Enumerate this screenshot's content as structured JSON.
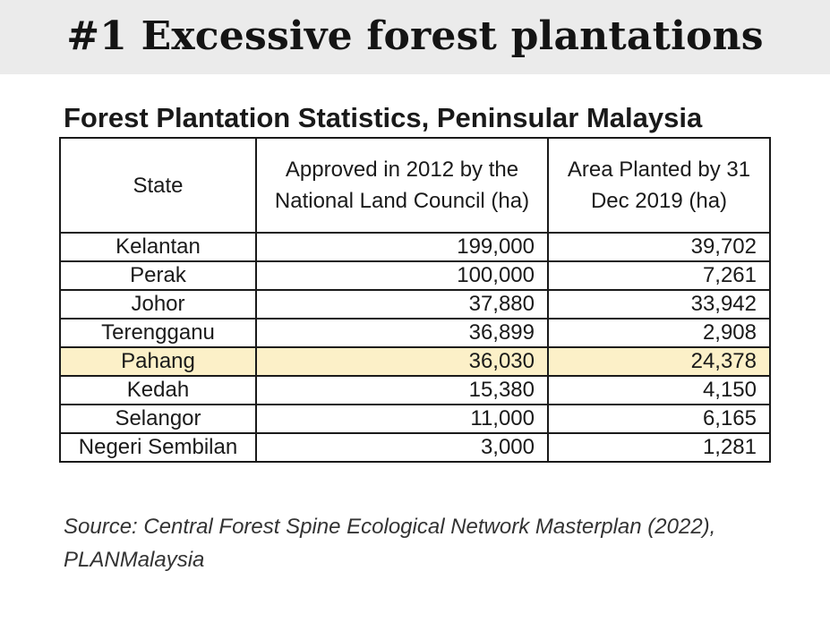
{
  "banner": {
    "title": "#1 Excessive forest plantations"
  },
  "chart_data": {
    "type": "table",
    "title": "Forest Plantation Statistics, Peninsular Malaysia",
    "columns": [
      "State",
      "Approved in 2012 by the National Land Council (ha)",
      "Area Planted by 31 Dec 2019 (ha)"
    ],
    "rows": [
      {
        "state": "Kelantan",
        "approved": "199,000",
        "planted": "39,702",
        "highlight": false
      },
      {
        "state": "Perak",
        "approved": "100,000",
        "planted": "7,261",
        "highlight": false
      },
      {
        "state": "Johor",
        "approved": "37,880",
        "planted": "33,942",
        "highlight": false
      },
      {
        "state": "Terengganu",
        "approved": "36,899",
        "planted": "2,908",
        "highlight": false
      },
      {
        "state": "Pahang",
        "approved": "36,030",
        "planted": "24,378",
        "highlight": true
      },
      {
        "state": "Kedah",
        "approved": "15,380",
        "planted": "4,150",
        "highlight": false
      },
      {
        "state": "Selangor",
        "approved": "11,000",
        "planted": "6,165",
        "highlight": false
      },
      {
        "state": "Negeri Sembilan",
        "approved": "3,000",
        "planted": "1,281",
        "highlight": false
      }
    ],
    "highlight_color": "#fcf0c8"
  },
  "source": "Source: Central Forest Spine Ecological Network Masterplan (2022), PLANMalaysia"
}
